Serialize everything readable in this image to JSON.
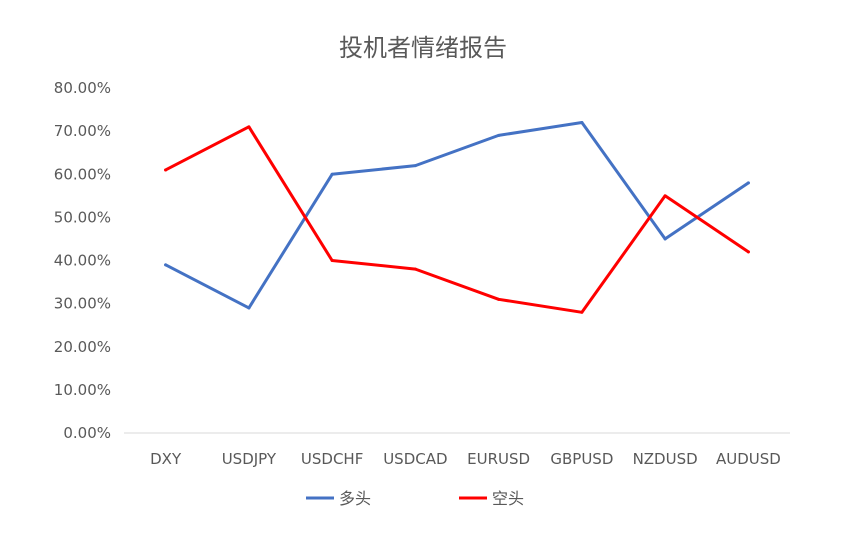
{
  "chart_data": {
    "type": "line",
    "title": "投机者情绪报告",
    "xlabel": "",
    "ylabel": "",
    "categories": [
      "DXY",
      "USDJPY",
      "USDCHF",
      "USDCAD",
      "EURUSD",
      "GBPUSD",
      "NZDUSD",
      "AUDUSD"
    ],
    "series": [
      {
        "name": "多头",
        "color": "#4472C4",
        "values": [
          0.39,
          0.29,
          0.6,
          0.62,
          0.69,
          0.72,
          0.45,
          0.58
        ]
      },
      {
        "name": "空头",
        "color": "#FF0000",
        "values": [
          0.61,
          0.71,
          0.4,
          0.38,
          0.31,
          0.28,
          0.55,
          0.42
        ]
      }
    ],
    "ylim": [
      0,
      0.8
    ],
    "y_ticks": [
      "0.00%",
      "10.00%",
      "20.00%",
      "30.00%",
      "40.00%",
      "50.00%",
      "60.00%",
      "70.00%",
      "80.00%"
    ],
    "grid": false,
    "legend_position": "bottom"
  }
}
